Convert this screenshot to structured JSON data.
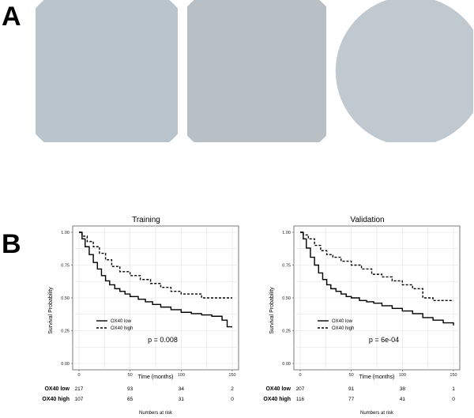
{
  "panels": {
    "a": "A",
    "b": "B"
  },
  "tissue_images": [
    {
      "description": "IHC core, low staining",
      "stain_color": "#9a5a2a",
      "bg": "#b9c4cc"
    },
    {
      "description": "IHC core, medium staining",
      "stain_color": "#8a4a20",
      "bg": "#b8c0c6"
    },
    {
      "description": "IHC core, high staining",
      "stain_color": "#7a3e1a",
      "bg": "#c0c8d0"
    }
  ],
  "chart_data": [
    {
      "type": "line",
      "title": "Training",
      "xlabel": "Time (months)",
      "ylabel": "Survival Probability",
      "xlim": [
        0,
        150
      ],
      "ylim": [
        0,
        1
      ],
      "xticks": [
        0,
        50,
        100,
        150
      ],
      "yticks": [
        "0.00",
        "0.25",
        "0.50",
        "0.75",
        "1.00"
      ],
      "grid": true,
      "legend_position": "lower-left",
      "series": [
        {
          "name": "OX40 low",
          "style": "solid",
          "x": [
            0,
            3,
            6,
            10,
            14,
            18,
            22,
            26,
            30,
            35,
            40,
            45,
            50,
            58,
            65,
            72,
            80,
            90,
            100,
            110,
            120,
            130,
            140,
            145,
            150
          ],
          "y": [
            1.0,
            0.95,
            0.89,
            0.83,
            0.77,
            0.72,
            0.67,
            0.63,
            0.6,
            0.57,
            0.55,
            0.53,
            0.51,
            0.49,
            0.47,
            0.45,
            0.43,
            0.41,
            0.39,
            0.38,
            0.37,
            0.36,
            0.33,
            0.28,
            0.28
          ]
        },
        {
          "name": "OX40 high",
          "style": "dashed",
          "x": [
            0,
            3,
            8,
            14,
            20,
            26,
            32,
            40,
            50,
            60,
            70,
            80,
            90,
            100,
            110,
            120,
            130,
            140,
            150
          ],
          "y": [
            1.0,
            0.97,
            0.93,
            0.89,
            0.84,
            0.79,
            0.74,
            0.7,
            0.67,
            0.64,
            0.61,
            0.58,
            0.55,
            0.53,
            0.53,
            0.5,
            0.5,
            0.5,
            0.5
          ]
        }
      ],
      "annotation": "p = 0.008",
      "risk_table": {
        "label": "Numbers at risk",
        "rows": [
          {
            "group": "OX40 low",
            "values": [
              "217",
              "93",
              "34",
              "2"
            ]
          },
          {
            "group": "OX40 high",
            "values": [
              "107",
              "65",
              "31",
              "0"
            ]
          }
        ]
      }
    },
    {
      "type": "line",
      "title": "Validation",
      "xlabel": "Time (months)",
      "ylabel": "Survival Probability",
      "xlim": [
        0,
        150
      ],
      "ylim": [
        0,
        1
      ],
      "xticks": [
        0,
        50,
        100,
        150
      ],
      "yticks": [
        "0.00",
        "0.25",
        "0.50",
        "0.75",
        "1.00"
      ],
      "grid": true,
      "legend_position": "lower-left",
      "series": [
        {
          "name": "OX40 low",
          "style": "solid",
          "x": [
            0,
            3,
            6,
            10,
            14,
            18,
            22,
            26,
            30,
            35,
            40,
            45,
            50,
            58,
            65,
            72,
            80,
            90,
            100,
            110,
            120,
            130,
            140,
            150
          ],
          "y": [
            1.0,
            0.95,
            0.88,
            0.81,
            0.75,
            0.69,
            0.64,
            0.6,
            0.57,
            0.55,
            0.53,
            0.51,
            0.5,
            0.48,
            0.47,
            0.46,
            0.44,
            0.42,
            0.4,
            0.38,
            0.35,
            0.33,
            0.31,
            0.29
          ]
        },
        {
          "name": "OX40 high",
          "style": "dashed",
          "x": [
            0,
            3,
            8,
            14,
            20,
            26,
            32,
            40,
            50,
            60,
            70,
            80,
            90,
            100,
            110,
            120,
            130,
            140,
            150
          ],
          "y": [
            1.0,
            0.98,
            0.95,
            0.9,
            0.86,
            0.83,
            0.81,
            0.78,
            0.75,
            0.72,
            0.68,
            0.66,
            0.63,
            0.6,
            0.57,
            0.5,
            0.48,
            0.48,
            0.48
          ]
        }
      ],
      "annotation": "p = 6e-04",
      "risk_table": {
        "label": "Numbers at risk",
        "rows": [
          {
            "group": "OX40 low",
            "values": [
              "207",
              "91",
              "38",
              "1"
            ]
          },
          {
            "group": "OX40 high",
            "values": [
              "116",
              "77",
              "41",
              "0"
            ]
          }
        ]
      }
    }
  ]
}
